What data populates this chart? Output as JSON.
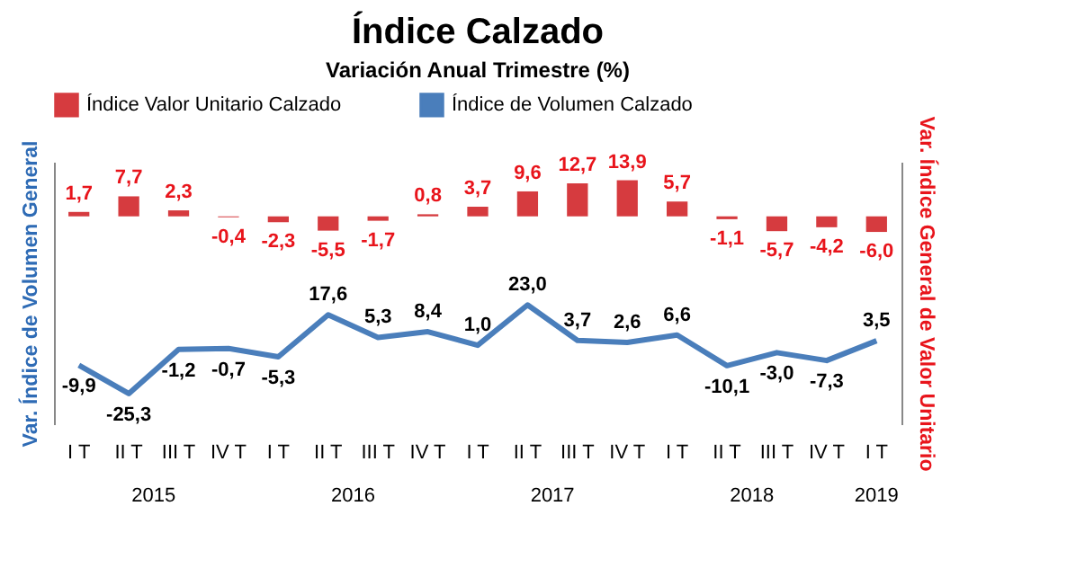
{
  "chart_data": {
    "type": "bar",
    "title": "Índice Calzado",
    "subtitle": "Variación Anual Trimestre  (%)",
    "ylabel": "Var. Índice de Volumen General",
    "y2label": "Var. Índice General de Valor Unitario",
    "categories": [
      "I T",
      "II T",
      "III T",
      "IV T",
      "I T",
      "II T",
      "III T",
      "IV T",
      "I T",
      "II T",
      "III T",
      "IV T",
      "I T",
      "II T",
      "III T",
      "IV T",
      "I T"
    ],
    "series": [
      {
        "name": "Índice Valor Unitario Calzado",
        "axis": "y2",
        "color": "#d63b3f",
        "values": [
          1.7,
          7.7,
          2.3,
          -0.4,
          -2.3,
          -5.5,
          -1.7,
          0.8,
          3.7,
          9.6,
          12.7,
          13.9,
          5.7,
          -1.1,
          -5.7,
          -4.2,
          -6.0
        ],
        "value_labels": [
          "1,7",
          "7,7",
          "2,3",
          "-0,4",
          "-2,3",
          "-5,5",
          "-1,7",
          "0,8",
          "3,7",
          "9,6",
          "12,7",
          "13,9",
          "5,7",
          "-1,1",
          "-5,7",
          "-4,2",
          "-6,0"
        ]
      },
      {
        "name": "Índice de Volumen Calzado",
        "type": "line",
        "color": "#4a7ebb",
        "values": [
          -9.9,
          -25.3,
          -1.2,
          -0.7,
          -5.3,
          17.6,
          5.3,
          8.4,
          1.0,
          23.0,
          3.7,
          2.6,
          6.6,
          -10.1,
          -3.0,
          -7.3,
          3.5
        ],
        "value_labels": [
          "-9,9",
          "-25,3",
          "-1,2",
          "-0,7",
          "-5,3",
          "17,6",
          "5,3",
          "8,4",
          "1,0",
          "23,0",
          "3,7",
          "2,6",
          "6,6",
          "-10,1",
          "-3,0",
          "-7,3",
          "3,5"
        ]
      }
    ],
    "ylim": [
      -42,
      101
    ],
    "y2lim": [
      -80,
      21
    ],
    "tick_labels": "x",
    "legend": "top",
    "annotations": [
      "2015",
      "2016",
      "2017",
      "2018",
      "2019"
    ]
  }
}
